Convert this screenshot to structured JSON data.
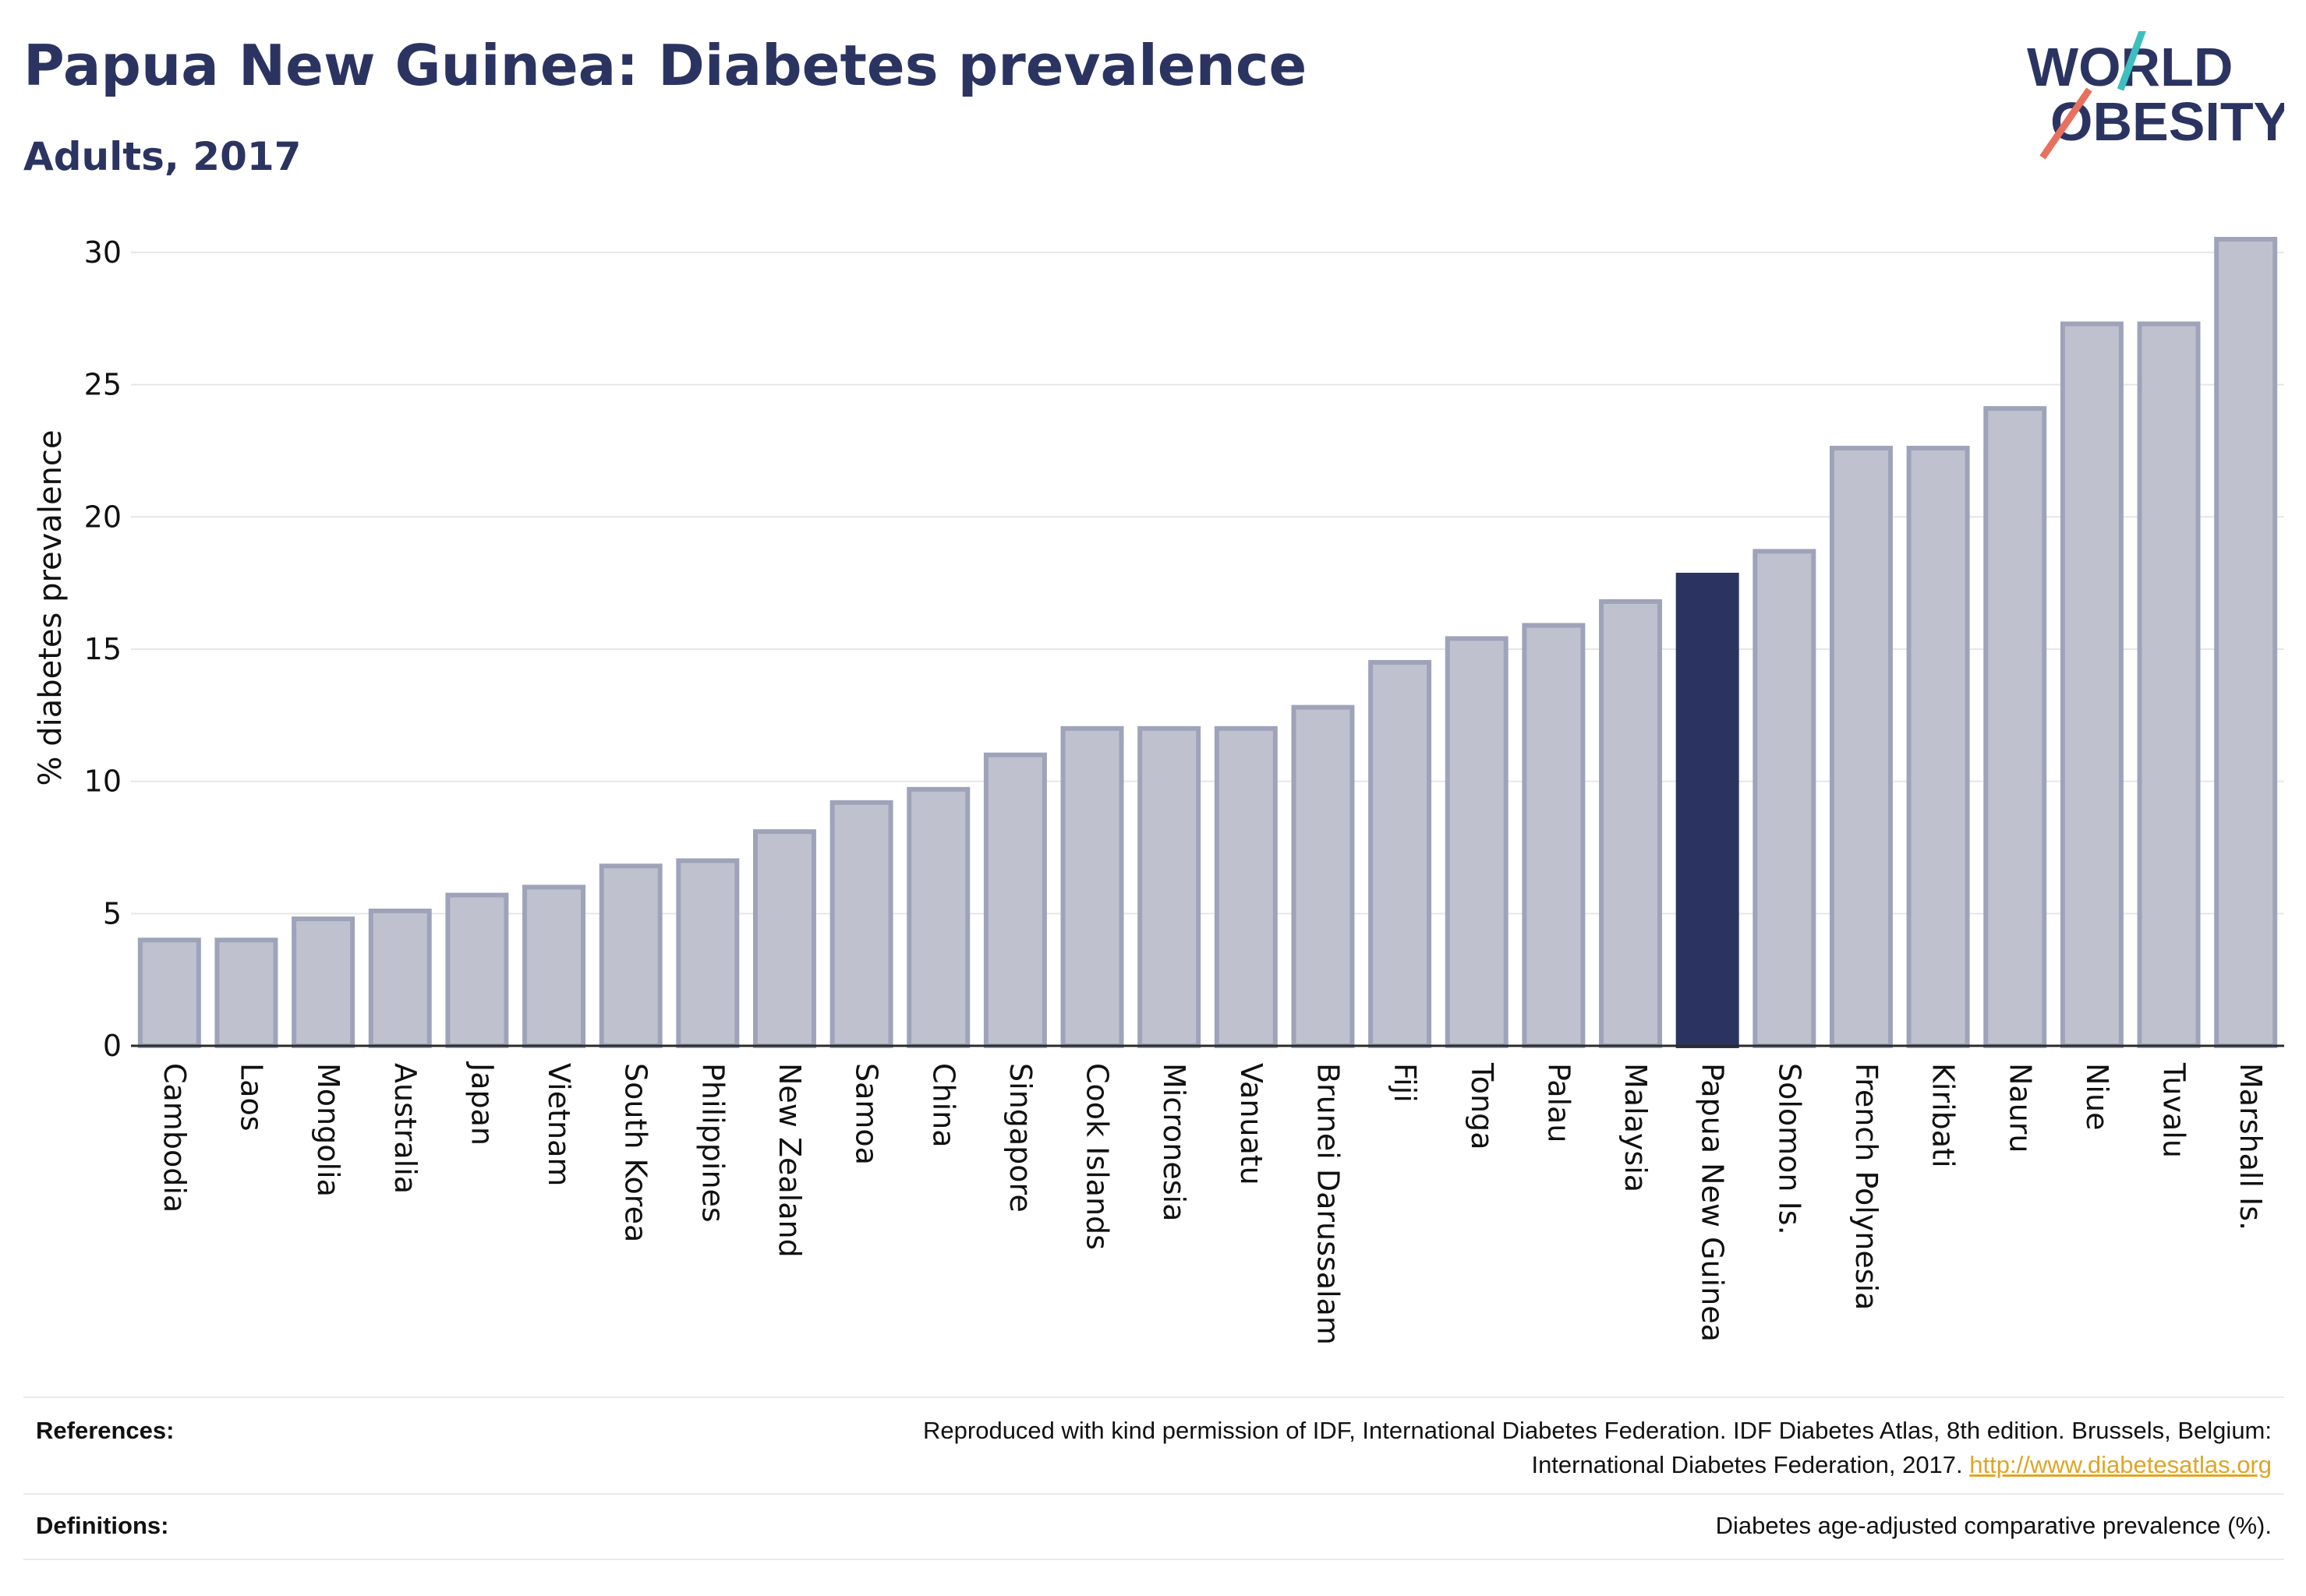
{
  "header": {
    "title": "Papua New Guinea: Diabetes prevalence",
    "subtitle": "Adults, 2017"
  },
  "logo": {
    "line1": "WORLD",
    "line2": "OBESITY"
  },
  "colors": {
    "bar": "#bfc2ce",
    "bar_border": "#9ea3b9",
    "highlight": "#2b3461",
    "text": "#2b3461",
    "grid": "#e6e6e6",
    "link": "#e0a526",
    "logo_teal": "#3dbfbf",
    "logo_coral": "#e8705f"
  },
  "chart_data": {
    "type": "bar",
    "ylabel": "% diabetes prevalence",
    "xlabel": "",
    "ylim": [
      0,
      31
    ],
    "yticks": [
      0,
      5,
      10,
      15,
      20,
      25,
      30
    ],
    "grid": true,
    "highlight": "Papua New Guinea",
    "categories": [
      "Cambodia",
      "Laos",
      "Mongolia",
      "Australia",
      "Japan",
      "Vietnam",
      "South Korea",
      "Philippines",
      "New Zealand",
      "Samoa",
      "China",
      "Singapore",
      "Cook Islands",
      "Micronesia",
      "Vanuatu",
      "Brunei Darussalam",
      "Fiji",
      "Tonga",
      "Palau",
      "Malaysia",
      "Papua New Guinea",
      "Solomon Is.",
      "French Polynesia",
      "Kiribati",
      "Nauru",
      "Niue",
      "Tuvalu",
      "Marshall Is."
    ],
    "values": [
      4.0,
      4.0,
      4.8,
      5.1,
      5.7,
      6.0,
      6.8,
      7.0,
      8.1,
      9.2,
      9.7,
      11.0,
      12.0,
      12.0,
      12.0,
      12.8,
      14.5,
      15.4,
      15.9,
      16.8,
      17.8,
      18.7,
      22.6,
      22.6,
      24.1,
      27.3,
      27.3,
      30.5
    ]
  },
  "footer": {
    "references_label": "References:",
    "references_text_1": "Reproduced with kind permission of IDF, International Diabetes Federation. IDF Diabetes Atlas, 8th edition. Brussels, Belgium:",
    "references_text_2": "International Diabetes Federation, 2017.",
    "references_link": "http://www.diabetesatlas.org",
    "definitions_label": "Definitions:",
    "definitions_text": "Diabetes age-adjusted comparative prevalence (%)."
  }
}
